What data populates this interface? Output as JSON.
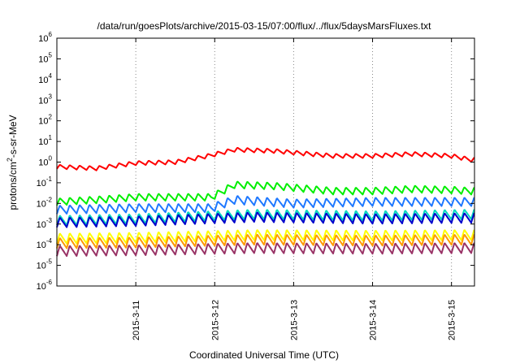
{
  "chart_data": {
    "type": "line",
    "title": "/data/run/goesPlots/archive/2015-03-15/07:00/flux/../flux/5daysMarsFluxes.txt",
    "xlabel": "Coordinated Universal Time (UTC)",
    "ylabel": {
      "base": "protons/cm",
      "sup": "2",
      "rest": "-s-sr-MeV"
    },
    "y_scale": "log",
    "ylim": [
      1e-06,
      1000000.0
    ],
    "y_ticks": [
      {
        "value": 1e-06,
        "base": "10",
        "exp": "-6"
      },
      {
        "value": 1e-05,
        "base": "10",
        "exp": "-5"
      },
      {
        "value": 0.0001,
        "base": "10",
        "exp": "-4"
      },
      {
        "value": 0.001,
        "base": "10",
        "exp": "-3"
      },
      {
        "value": 0.01,
        "base": "10",
        "exp": "-2"
      },
      {
        "value": 0.1,
        "base": "10",
        "exp": "-1"
      },
      {
        "value": 1,
        "base": "10",
        "exp": "0"
      },
      {
        "value": 10,
        "base": "10",
        "exp": "1"
      },
      {
        "value": 100,
        "base": "10",
        "exp": "2"
      },
      {
        "value": 1000,
        "base": "10",
        "exp": "3"
      },
      {
        "value": 10000,
        "base": "10",
        "exp": "4"
      },
      {
        "value": 100000,
        "base": "10",
        "exp": "5"
      },
      {
        "value": 1000000,
        "base": "10",
        "exp": "6"
      }
    ],
    "xlim": [
      "2015-03-10T00:00",
      "2015-03-15T07:00"
    ],
    "x_ticks": [
      {
        "value": "2015-03-11T00:00",
        "label": "2015-3-11"
      },
      {
        "value": "2015-03-12T00:00",
        "label": "2015-3-12"
      },
      {
        "value": "2015-03-13T00:00",
        "label": "2015-3-13"
      },
      {
        "value": "2015-03-14T00:00",
        "label": "2015-3-14"
      },
      {
        "value": "2015-03-15T00:00",
        "label": "2015-3-15"
      }
    ],
    "grid": "vertical dotted at x ticks",
    "sawtooth_period_hours": 3,
    "series": [
      {
        "color": "#ff0000",
        "points": [
          [
            "2015-03-10T00:00",
            0.6
          ],
          [
            "2015-03-10T12:00",
            0.5
          ],
          [
            "2015-03-11T00:00",
            0.9
          ],
          [
            "2015-03-11T12:00",
            1.0
          ],
          [
            "2015-03-11T22:00",
            2.0
          ],
          [
            "2015-03-12T06:00",
            4.0
          ],
          [
            "2015-03-12T18:00",
            3.5
          ],
          [
            "2015-03-13T12:00",
            2.0
          ],
          [
            "2015-03-14T00:00",
            2.0
          ],
          [
            "2015-03-14T12:00",
            2.5
          ],
          [
            "2015-03-15T00:00",
            2.0
          ],
          [
            "2015-03-15T06:00",
            1.3
          ]
        ],
        "amplitude": 1.6
      },
      {
        "color": "#00ee00",
        "points": [
          [
            "2015-03-10T00:00",
            0.012
          ],
          [
            "2015-03-10T12:00",
            0.015
          ],
          [
            "2015-03-11T00:00",
            0.02
          ],
          [
            "2015-03-11T23:00",
            0.02
          ],
          [
            "2015-03-12T06:00",
            0.08
          ],
          [
            "2015-03-12T18:00",
            0.07
          ],
          [
            "2015-03-13T12:00",
            0.04
          ],
          [
            "2015-03-14T00:00",
            0.04
          ],
          [
            "2015-03-14T12:00",
            0.05
          ],
          [
            "2015-03-15T00:00",
            0.045
          ],
          [
            "2015-03-15T06:00",
            0.04
          ]
        ],
        "amplitude": 2.2
      },
      {
        "color": "#1e78ff",
        "points": [
          [
            "2015-03-10T00:00",
            0.005
          ],
          [
            "2015-03-11T00:00",
            0.006
          ],
          [
            "2015-03-11T23:00",
            0.006
          ],
          [
            "2015-03-12T06:00",
            0.015
          ],
          [
            "2015-03-13T00:00",
            0.01
          ],
          [
            "2015-03-14T00:00",
            0.012
          ],
          [
            "2015-03-15T06:00",
            0.012
          ]
        ],
        "amplitude": 2.6
      },
      {
        "color": "#00d8c0",
        "points": [
          [
            "2015-03-10T00:00",
            0.0015
          ],
          [
            "2015-03-11T00:00",
            0.0018
          ],
          [
            "2015-03-12T12:00",
            0.003
          ],
          [
            "2015-03-14T00:00",
            0.0025
          ],
          [
            "2015-03-15T06:00",
            0.003
          ]
        ],
        "amplitude": 3.0
      },
      {
        "color": "#0000cc",
        "points": [
          [
            "2015-03-10T00:00",
            0.0012
          ],
          [
            "2015-03-11T00:00",
            0.0014
          ],
          [
            "2015-03-12T12:00",
            0.0022
          ],
          [
            "2015-03-14T00:00",
            0.0018
          ],
          [
            "2015-03-15T06:00",
            0.002
          ]
        ],
        "amplitude": 3.0
      },
      {
        "color": "#ffff00",
        "points": [
          [
            "2015-03-10T00:00",
            0.0002
          ],
          [
            "2015-03-11T00:00",
            0.00022
          ],
          [
            "2015-03-12T12:00",
            0.0003
          ],
          [
            "2015-03-14T00:00",
            0.00028
          ],
          [
            "2015-03-15T06:00",
            0.0003
          ]
        ],
        "amplitude": 3.2
      },
      {
        "color": "#ff9900",
        "points": [
          [
            "2015-03-10T00:00",
            0.00012
          ],
          [
            "2015-03-11T00:00",
            0.00013
          ],
          [
            "2015-03-12T12:00",
            0.00018
          ],
          [
            "2015-03-14T00:00",
            0.00016
          ],
          [
            "2015-03-15T06:00",
            0.00018
          ]
        ],
        "amplitude": 3.2
      },
      {
        "color": "#993366",
        "points": [
          [
            "2015-03-10T00:00",
            5e-05
          ],
          [
            "2015-03-11T00:00",
            5.5e-05
          ],
          [
            "2015-03-12T12:00",
            7e-05
          ],
          [
            "2015-03-14T00:00",
            6.5e-05
          ],
          [
            "2015-03-15T06:00",
            7e-05
          ]
        ],
        "amplitude": 3.2
      }
    ]
  }
}
